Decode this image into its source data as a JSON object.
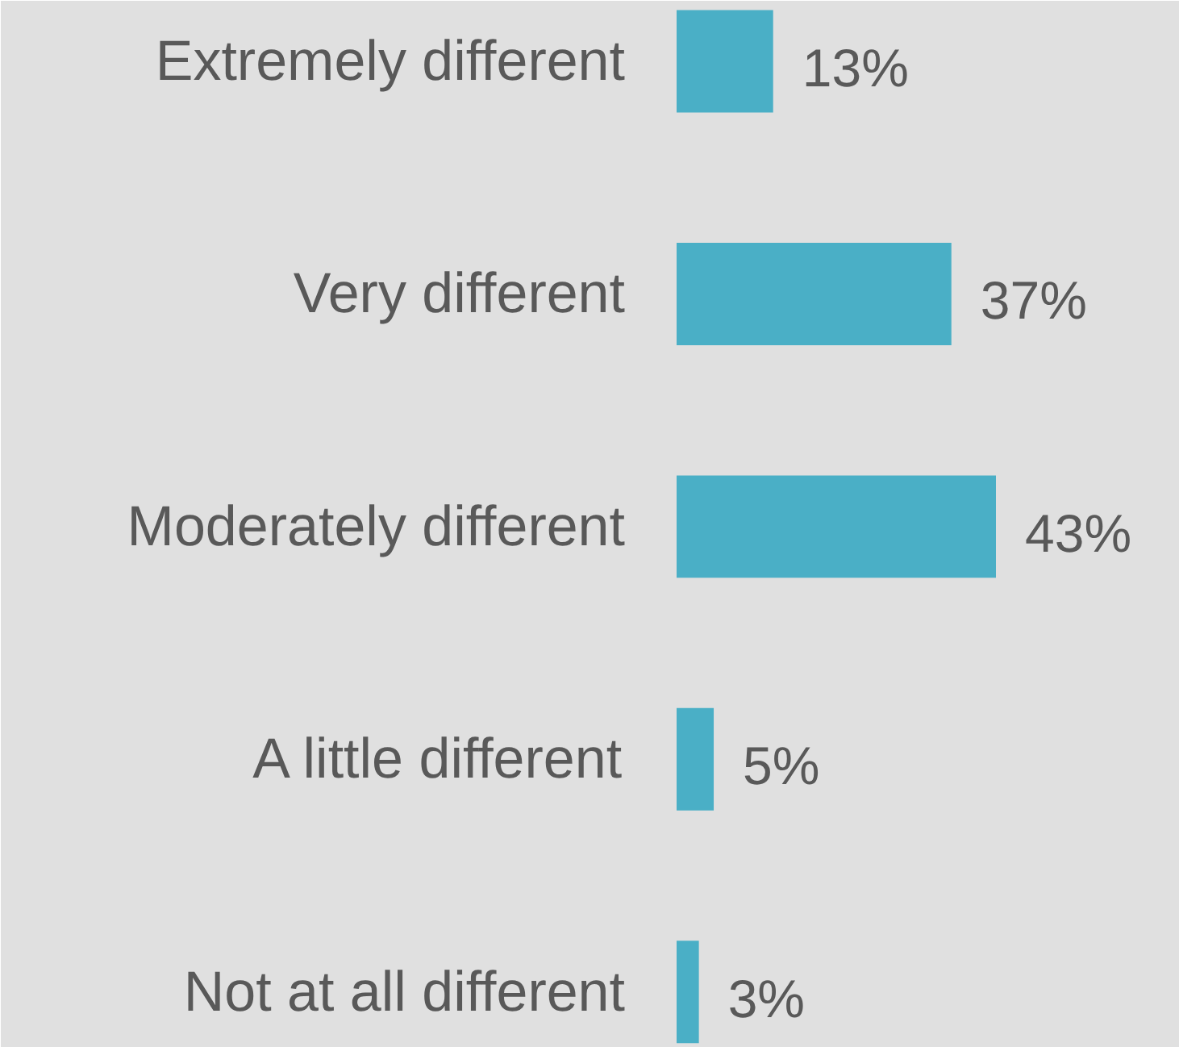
{
  "chart_data": {
    "type": "bar",
    "orientation": "horizontal",
    "categories": [
      "Extremely different",
      "Very different",
      "Moderately different",
      "A little different",
      "Not at all different"
    ],
    "values": [
      13,
      37,
      43,
      5,
      3
    ],
    "value_labels": [
      "13%",
      "37%",
      "43%",
      "5%",
      "3%"
    ],
    "color": "#4aafc6"
  }
}
